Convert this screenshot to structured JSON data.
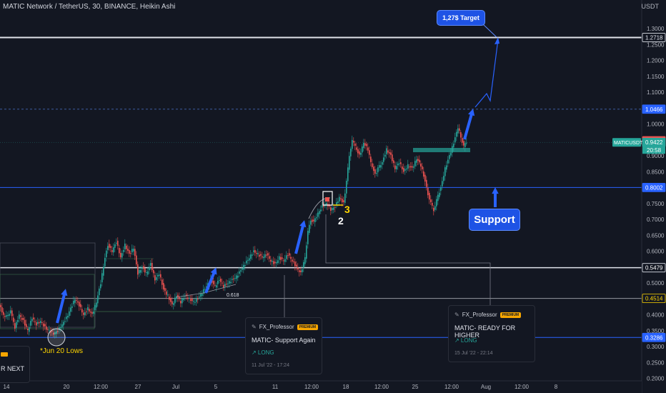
{
  "header": {
    "title": "MATIC Network / TetherUS, 30, BINANCE, Heikin Ashi",
    "unit": "USDT"
  },
  "colors": {
    "up": "#26a69a",
    "down": "#ef5350",
    "blue": "#2962ff",
    "bg": "#131722",
    "annot": "#ffd600"
  },
  "chart_data": {
    "type": "candlestick",
    "title": "MATIC Network / TetherUS, 30, BINANCE, Heikin Ashi",
    "ylim": [
      0.18,
      1.34
    ],
    "y_ticks": [
      "0.2000",
      "0.2500",
      "0.3000",
      "0.3500",
      "0.4000",
      "0.4500",
      "0.5000",
      "0.5500",
      "0.6000",
      "0.6500",
      "0.7000",
      "0.7500",
      "0.8000",
      "0.8500",
      "0.9000",
      "0.9500",
      "1.0000",
      "1.0500",
      "1.1000",
      "1.1500",
      "1.2000",
      "1.2500",
      "1.3000"
    ],
    "x_ticks": [
      "14",
      "20",
      "12:00",
      "27",
      "Jul",
      "5",
      "11",
      "12:00",
      "18",
      "12:00",
      "25",
      "12:00",
      "Aug",
      "12:00",
      "8"
    ],
    "price_levels": [
      {
        "label": "1.2718",
        "value": 1.2718
      },
      {
        "label": "1.0466",
        "value": 1.0466
      },
      {
        "label": "0.9471",
        "value": 0.9471
      },
      {
        "label": "0.9422",
        "value": 0.9422
      },
      {
        "label": "0.8002",
        "value": 0.8002
      },
      {
        "label": "0.5479",
        "value": 0.5479
      },
      {
        "label": "0.4514",
        "value": 0.4514
      },
      {
        "label": "0.3286",
        "value": 0.3286
      }
    ],
    "symbol_tag": "MATICUSDT",
    "countdown": "20:58",
    "annotations": {
      "jun20": "*Jun 20 Lows",
      "fib": "0.618",
      "wave2": "2",
      "wave3": "3",
      "target": "1,27$ Target",
      "support": "Support",
      "next_partial": "R NEXT"
    },
    "path": [
      [
        0,
        0.43
      ],
      [
        8,
        0.39
      ],
      [
        16,
        0.41
      ],
      [
        22,
        0.36
      ],
      [
        28,
        0.4
      ],
      [
        34,
        0.38
      ],
      [
        40,
        0.35
      ],
      [
        46,
        0.39
      ],
      [
        52,
        0.37
      ],
      [
        58,
        0.38
      ],
      [
        64,
        0.36
      ],
      [
        70,
        0.35
      ],
      [
        76,
        0.34
      ],
      [
        82,
        0.35
      ],
      [
        88,
        0.37
      ],
      [
        94,
        0.39
      ],
      [
        100,
        0.42
      ],
      [
        106,
        0.45
      ],
      [
        112,
        0.43
      ],
      [
        118,
        0.4
      ],
      [
        124,
        0.42
      ],
      [
        130,
        0.4
      ],
      [
        136,
        0.44
      ],
      [
        142,
        0.5
      ],
      [
        148,
        0.58
      ],
      [
        152,
        0.62
      ],
      [
        158,
        0.6
      ],
      [
        164,
        0.63
      ],
      [
        170,
        0.58
      ],
      [
        176,
        0.62
      ],
      [
        182,
        0.59
      ],
      [
        188,
        0.61
      ],
      [
        194,
        0.53
      ],
      [
        200,
        0.55
      ],
      [
        206,
        0.53
      ],
      [
        212,
        0.56
      ],
      [
        218,
        0.51
      ],
      [
        224,
        0.53
      ],
      [
        230,
        0.48
      ],
      [
        236,
        0.46
      ],
      [
        242,
        0.43
      ],
      [
        248,
        0.46
      ],
      [
        254,
        0.44
      ],
      [
        260,
        0.46
      ],
      [
        266,
        0.45
      ],
      [
        272,
        0.44
      ],
      [
        278,
        0.45
      ],
      [
        284,
        0.47
      ],
      [
        290,
        0.49
      ],
      [
        296,
        0.51
      ],
      [
        302,
        0.49
      ],
      [
        308,
        0.51
      ],
      [
        314,
        0.49
      ],
      [
        320,
        0.5
      ],
      [
        326,
        0.51
      ],
      [
        332,
        0.52
      ],
      [
        338,
        0.54
      ],
      [
        344,
        0.56
      ],
      [
        350,
        0.58
      ],
      [
        356,
        0.6
      ],
      [
        362,
        0.59
      ],
      [
        368,
        0.58
      ],
      [
        374,
        0.59
      ],
      [
        380,
        0.57
      ],
      [
        386,
        0.56
      ],
      [
        392,
        0.58
      ],
      [
        398,
        0.57
      ],
      [
        404,
        0.59
      ],
      [
        410,
        0.57
      ],
      [
        416,
        0.55
      ],
      [
        422,
        0.53
      ],
      [
        428,
        0.58
      ],
      [
        432,
        0.66
      ],
      [
        436,
        0.7
      ],
      [
        440,
        0.69
      ],
      [
        446,
        0.72
      ],
      [
        452,
        0.74
      ],
      [
        458,
        0.75
      ],
      [
        464,
        0.73
      ],
      [
        470,
        0.74
      ],
      [
        476,
        0.77
      ],
      [
        482,
        0.75
      ],
      [
        486,
        0.82
      ],
      [
        490,
        0.9
      ],
      [
        494,
        0.95
      ],
      [
        498,
        0.93
      ],
      [
        504,
        0.9
      ],
      [
        510,
        0.94
      ],
      [
        516,
        0.92
      ],
      [
        520,
        0.88
      ],
      [
        526,
        0.84
      ],
      [
        530,
        0.86
      ],
      [
        536,
        0.88
      ],
      [
        542,
        0.92
      ],
      [
        548,
        0.9
      ],
      [
        554,
        0.86
      ],
      [
        560,
        0.88
      ],
      [
        566,
        0.85
      ],
      [
        572,
        0.87
      ],
      [
        578,
        0.86
      ],
      [
        584,
        0.89
      ],
      [
        590,
        0.87
      ],
      [
        596,
        0.82
      ],
      [
        600,
        0.78
      ],
      [
        604,
        0.75
      ],
      [
        608,
        0.73
      ],
      [
        612,
        0.76
      ],
      [
        618,
        0.8
      ],
      [
        624,
        0.86
      ],
      [
        630,
        0.9
      ],
      [
        636,
        0.94
      ],
      [
        642,
        0.99
      ],
      [
        646,
        0.96
      ],
      [
        650,
        0.93
      ],
      [
        654,
        0.9422
      ]
    ]
  },
  "cards": [
    {
      "author": "FX_Professor",
      "badge": "PREMIUM",
      "title": "MATIC- Support Again",
      "direction": "↗ LONG",
      "time": "11 Jul '22 - 17:24"
    },
    {
      "author": "FX_Professor",
      "badge": "PREMIUM",
      "title": "MATIC- READY FOR HIGHER",
      "direction": "↗ LONG",
      "time": "15 Jul '22 - 22:14"
    }
  ]
}
